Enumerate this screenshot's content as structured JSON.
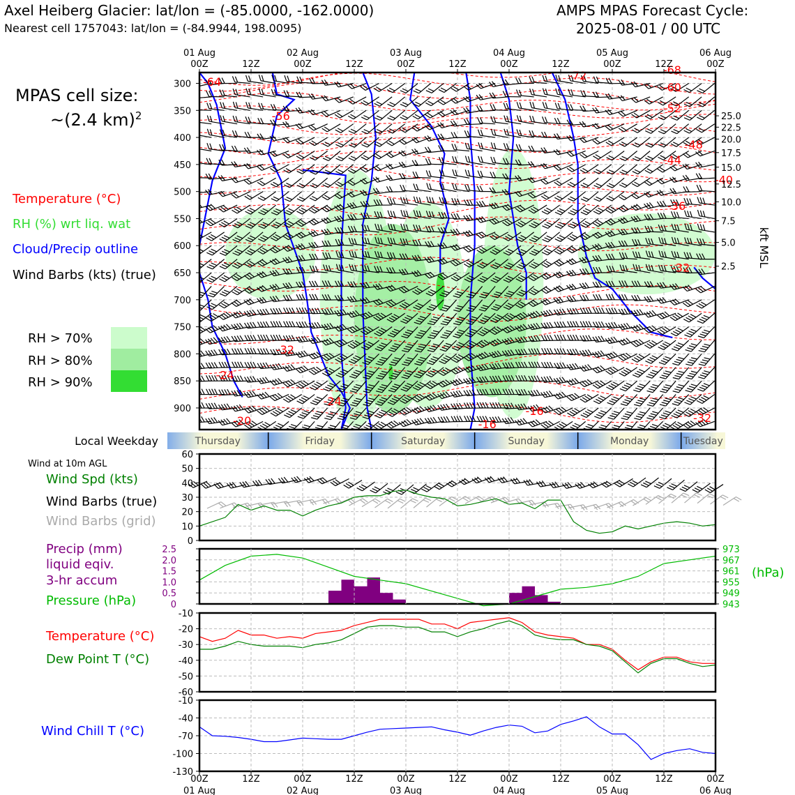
{
  "header": {
    "title_left": "Axel Heiberg Glacier: lat/lon = (-85.0000, -162.0000)",
    "subtitle_left": "Nearest cell 1757043: lat/lon = (-84.9944, 198.0095)",
    "title_right_1": "AMPS MPAS Forecast Cycle:",
    "title_right_2": "2025-08-01 / 00 UTC"
  },
  "time_axis": {
    "top_labels": [
      [
        "01 Aug",
        "00Z"
      ],
      [
        "",
        "12Z"
      ],
      [
        "02 Aug",
        "00Z"
      ],
      [
        "",
        "12Z"
      ],
      [
        "03 Aug",
        "00Z"
      ],
      [
        "",
        "12Z"
      ],
      [
        "04 Aug",
        "00Z"
      ],
      [
        "",
        "12Z"
      ],
      [
        "05 Aug",
        "00Z"
      ],
      [
        "",
        "12Z"
      ],
      [
        "06 Aug",
        "00Z"
      ]
    ],
    "bottom_labels": [
      [
        "00Z",
        "01 Aug"
      ],
      [
        "12Z",
        ""
      ],
      [
        "00Z",
        "02 Aug"
      ],
      [
        "12Z",
        ""
      ],
      [
        "00Z",
        "03 Aug"
      ],
      [
        "12Z",
        ""
      ],
      [
        "00Z",
        "04 Aug"
      ],
      [
        "12Z",
        ""
      ],
      [
        "00Z",
        "05 Aug"
      ],
      [
        "12Z",
        ""
      ],
      [
        "00Z",
        "06 Aug"
      ]
    ]
  },
  "cell_size": {
    "line1": "MPAS cell size:",
    "line2": "~(2.4 km)",
    "sup": "2"
  },
  "legend_profile": {
    "temp": "Temperature (°C)",
    "rh": "RH (%) wrt liq. wat",
    "cloud": "Cloud/Precip outline",
    "wind": "Wind Barbs (kts) (true)",
    "rh70": "RH > 70%",
    "rh80": "RH > 80%",
    "rh90": "RH > 90%"
  },
  "colors": {
    "temp": "#ff0000",
    "rh_label": "#33dd33",
    "rh70": "#ccfccc",
    "rh80": "#a0eda0",
    "rh90": "#33dd33",
    "cloud": "#0000ff",
    "speed": "#008000",
    "precip": "#800080",
    "pressure": "#00bb00",
    "dewpoint": "#008000",
    "windchill": "#0000ff",
    "barb_grid": "#aaaaaa"
  },
  "weekday": {
    "label": "Local Weekday",
    "days": [
      "Thursday",
      "Friday",
      "Saturday",
      "Sunday",
      "Monday",
      "Tuesday"
    ]
  },
  "wind_legend": {
    "sub": "Wind at 10m AGL",
    "speed": "Wind Spd (kts)",
    "true": "Wind Barbs (true)",
    "grid": "Wind Barbs (grid)"
  },
  "precip_legend": {
    "l1": "Precip (mm)",
    "l2": "liquid eqiv.",
    "l3": "3-hr accum",
    "pressure": "Pressure (hPa)",
    "right_unit": "(hPa)"
  },
  "temp_legend": {
    "temp": "Temperature (°C)",
    "dew": "Dew Point T (°C)"
  },
  "wc_legend": {
    "label": "Wind Chill T (°C)"
  },
  "kft_label": "kft MSL",
  "chart_data": [
    {
      "type": "heatmap",
      "name": "profile",
      "y_pressure_ticks": [
        "300",
        "350",
        "400",
        "450",
        "500",
        "550",
        "600",
        "650",
        "700",
        "750",
        "800",
        "850",
        "900"
      ],
      "y_pressure_values": [
        300,
        350,
        400,
        450,
        500,
        550,
        600,
        650,
        700,
        750,
        800,
        850,
        900
      ],
      "ylim_hPa": [
        940,
        280
      ],
      "kft_ticks": [
        "25.0",
        "22.5",
        "20.0",
        "17.5",
        "15.0",
        "12.5",
        "10.0",
        "7.5",
        "5.0",
        "2.5"
      ],
      "kft_tick_pressures": [
        360,
        381,
        403,
        428,
        455,
        486,
        519,
        554,
        594,
        638
      ],
      "temp_contour_labels": [
        {
          "t": 0,
          "p": 297,
          "label": "-64"
        },
        {
          "t": 16,
          "p": 360,
          "label": "-56"
        },
        {
          "t": 85,
          "p": 285,
          "label": "-72"
        },
        {
          "t": 107,
          "p": 275,
          "label": "-68"
        },
        {
          "t": 107,
          "p": 307,
          "label": "-60"
        },
        {
          "t": 107,
          "p": 346,
          "label": "-52"
        },
        {
          "t": 112,
          "p": 413,
          "label": "-48"
        },
        {
          "t": 107,
          "p": 441,
          "label": "-44"
        },
        {
          "t": 119,
          "p": 478,
          "label": "-40"
        },
        {
          "t": 108,
          "p": 526,
          "label": "-36"
        },
        {
          "t": 109,
          "p": 640,
          "label": "-32"
        },
        {
          "t": 17,
          "p": 792,
          "label": "-32"
        },
        {
          "t": 3,
          "p": 839,
          "label": "-24"
        },
        {
          "t": 75,
          "p": 905,
          "label": "-16"
        },
        {
          "t": 64,
          "p": 930,
          "label": "-16"
        },
        {
          "t": 7,
          "p": 923,
          "label": "-20"
        },
        {
          "t": 114,
          "p": 918,
          "label": "-32"
        },
        {
          "t": 28,
          "p": 887,
          "label": "-24"
        }
      ],
      "rh_patches": [
        {
          "level": 70,
          "t0": 6,
          "t1": 27,
          "p0": 530,
          "p1": 700
        },
        {
          "level": 70,
          "t0": 28,
          "t1": 45,
          "p0": 460,
          "p1": 935
        },
        {
          "level": 70,
          "t0": 44,
          "t1": 62,
          "p0": 520,
          "p1": 900
        },
        {
          "level": 70,
          "t0": 66,
          "t1": 80,
          "p0": 420,
          "p1": 920
        },
        {
          "level": 70,
          "t0": 88,
          "t1": 120,
          "p0": 540,
          "p1": 690
        },
        {
          "level": 80,
          "t0": 36,
          "t1": 54,
          "p0": 560,
          "p1": 910
        },
        {
          "level": 80,
          "t0": 60,
          "t1": 76,
          "p0": 600,
          "p1": 880
        },
        {
          "level": 90,
          "t0": 55,
          "t1": 57,
          "p0": 650,
          "p1": 720
        },
        {
          "level": 90,
          "t0": 44,
          "t1": 45,
          "p0": 820,
          "p1": 850
        }
      ],
      "cloud_outlines": [
        [
          [
            0,
            280
          ],
          [
            2,
            300
          ],
          [
            4,
            340
          ],
          [
            6,
            420
          ],
          [
            3,
            480
          ],
          [
            1,
            560
          ],
          [
            0,
            600
          ]
        ],
        [
          [
            17,
            280
          ],
          [
            18,
            320
          ],
          [
            22,
            330
          ],
          [
            18,
            360
          ],
          [
            16,
            430
          ],
          [
            19,
            480
          ],
          [
            20,
            560
          ],
          [
            24,
            650
          ],
          [
            25,
            700
          ],
          [
            26,
            760
          ],
          [
            28,
            800
          ],
          [
            30,
            840
          ],
          [
            33,
            870
          ],
          [
            35,
            900
          ],
          [
            33,
            940
          ]
        ],
        [
          [
            24,
            460
          ],
          [
            34,
            470
          ],
          [
            33,
            600
          ],
          [
            33,
            800
          ],
          [
            34,
            900
          ],
          [
            33,
            940
          ]
        ],
        [
          [
            38,
            280
          ],
          [
            40,
            320
          ],
          [
            41,
            400
          ],
          [
            40,
            480
          ],
          [
            38,
            560
          ],
          [
            38,
            720
          ],
          [
            39,
            900
          ],
          [
            40,
            940
          ]
        ],
        [
          [
            50,
            280
          ],
          [
            49,
            330
          ],
          [
            54,
            380
          ],
          [
            57,
            430
          ],
          [
            56,
            480
          ],
          [
            58,
            550
          ],
          [
            56,
            600
          ],
          [
            56,
            650
          ]
        ],
        [
          [
            62,
            280
          ],
          [
            63,
            330
          ],
          [
            63,
            400
          ],
          [
            64,
            500
          ],
          [
            64,
            600
          ],
          [
            63,
            700
          ],
          [
            63,
            800
          ],
          [
            64,
            900
          ],
          [
            63,
            940
          ]
        ],
        [
          [
            70,
            280
          ],
          [
            72,
            330
          ],
          [
            73,
            400
          ],
          [
            72,
            500
          ],
          [
            74,
            600
          ],
          [
            76,
            650
          ],
          [
            76,
            700
          ]
        ],
        [
          [
            82,
            280
          ],
          [
            85,
            330
          ],
          [
            87,
            400
          ],
          [
            88,
            450
          ],
          [
            88,
            550
          ],
          [
            90,
            620
          ],
          [
            92,
            660
          ],
          [
            96,
            680
          ],
          [
            100,
            720
          ],
          [
            105,
            760
          ],
          [
            110,
            770
          ]
        ],
        [
          [
            115,
            640
          ],
          [
            117,
            660
          ],
          [
            120,
            680
          ]
        ],
        [
          [
            0,
            650
          ],
          [
            2,
            700
          ],
          [
            3,
            750
          ],
          [
            6,
            800
          ],
          [
            8,
            850
          ],
          [
            10,
            880
          ]
        ]
      ]
    },
    {
      "type": "line",
      "name": "wind_speed",
      "ylabel": "",
      "ylim": [
        0,
        60
      ],
      "yticks": [
        "0",
        "10",
        "20",
        "30",
        "40",
        "50",
        "60"
      ],
      "x_hours": [
        0,
        6,
        9,
        12,
        15,
        18,
        21,
        24,
        27,
        30,
        33,
        36,
        39,
        42,
        45,
        48,
        51,
        54,
        57,
        60,
        63,
        66,
        69,
        72,
        75,
        78,
        81,
        84,
        87,
        90,
        93,
        96,
        99,
        102,
        105,
        108,
        111,
        114,
        117,
        120
      ],
      "series": [
        {
          "name": "",
          "values": [
            10,
            16,
            25,
            21,
            24,
            21,
            21,
            17,
            21,
            24,
            26,
            30,
            31,
            31,
            34,
            35,
            32,
            30,
            29,
            24,
            25,
            27,
            29,
            25,
            26,
            22,
            28,
            28,
            13,
            7,
            5,
            6,
            10,
            8,
            10,
            12,
            13,
            12,
            10,
            11
          ]
        }
      ]
    },
    {
      "type": "bar",
      "name": "precip",
      "ylim": [
        0,
        2.5
      ],
      "yticks_left": [
        "0",
        "0.5",
        "1.0",
        "1.5",
        "2.0",
        "2.5"
      ],
      "yticks_right": [
        "943",
        "949",
        "955",
        "961",
        "967",
        "973"
      ],
      "bars_hours": [
        [
          30,
          33,
          0.6
        ],
        [
          33,
          36,
          1.1
        ],
        [
          36,
          39,
          0.8
        ],
        [
          39,
          42,
          1.2
        ],
        [
          42,
          45,
          0.5
        ],
        [
          45,
          48,
          0.2
        ],
        [
          72,
          75,
          0.5
        ],
        [
          75,
          78,
          0.8
        ],
        [
          78,
          81,
          0.4
        ],
        [
          81,
          84,
          0.1
        ]
      ],
      "series": [
        {
          "name": "",
          "values_hours": [
            [
              0,
              956
            ],
            [
              6,
              964
            ],
            [
              12,
              969
            ],
            [
              18,
              970
            ],
            [
              24,
              968
            ],
            [
              30,
              963
            ],
            [
              36,
              958
            ],
            [
              42,
              956
            ],
            [
              48,
              954
            ],
            [
              54,
              950
            ],
            [
              60,
              946
            ],
            [
              66,
              942
            ],
            [
              72,
              943
            ],
            [
              78,
              947
            ],
            [
              84,
              951
            ],
            [
              90,
              952
            ],
            [
              96,
              954
            ],
            [
              102,
              958
            ],
            [
              108,
              965
            ],
            [
              114,
              967
            ],
            [
              120,
              969
            ]
          ]
        }
      ],
      "pressure_range": [
        943,
        973
      ]
    },
    {
      "type": "line",
      "name": "temperature_dewpoint",
      "ylim": [
        -60,
        -10
      ],
      "yticks": [
        "-10",
        "-20",
        "-30",
        "-40",
        "-50",
        "-60"
      ],
      "x_hours": [
        0,
        3,
        6,
        9,
        12,
        15,
        18,
        21,
        24,
        27,
        30,
        33,
        36,
        39,
        42,
        45,
        48,
        51,
        54,
        57,
        60,
        63,
        66,
        69,
        72,
        75,
        78,
        81,
        84,
        87,
        90,
        93,
        96,
        99,
        102,
        105,
        108,
        111,
        114,
        117,
        120
      ],
      "series": [
        {
          "name": "",
          "values": [
            -25,
            -28,
            -26,
            -21,
            -24,
            -24,
            -26,
            -25,
            -26,
            -23,
            -22,
            -21,
            -18,
            -16,
            -14,
            -14,
            -14,
            -14,
            -17,
            -17,
            -20,
            -16,
            -15,
            -14,
            -13,
            -16,
            -22,
            -24,
            -25,
            -26,
            -30,
            -30,
            -33,
            -40,
            -46,
            -41,
            -38,
            -38,
            -41,
            -42,
            -42
          ]
        },
        {
          "name": "",
          "values": [
            -33,
            -33,
            -31,
            -28,
            -30,
            -31,
            -31,
            -31,
            -32,
            -30,
            -29,
            -27,
            -23,
            -19,
            -18,
            -18,
            -19,
            -19,
            -22,
            -22,
            -25,
            -22,
            -20,
            -17,
            -15,
            -18,
            -24,
            -26,
            -27,
            -27,
            -30,
            -31,
            -34,
            -41,
            -48,
            -42,
            -39,
            -39,
            -42,
            -44,
            -43
          ]
        }
      ]
    },
    {
      "type": "line",
      "name": "wind_chill",
      "ylim": [
        -130,
        -10
      ],
      "yticks": [
        "-10",
        "-40",
        "-70",
        "-100",
        "-130"
      ],
      "x_hours": [
        0,
        3,
        6,
        9,
        12,
        15,
        18,
        21,
        24,
        27,
        30,
        33,
        36,
        39,
        42,
        45,
        48,
        51,
        54,
        57,
        60,
        63,
        66,
        69,
        72,
        75,
        78,
        81,
        84,
        87,
        90,
        93,
        96,
        99,
        102,
        105,
        108,
        111,
        114,
        117,
        120
      ],
      "series": [
        {
          "name": "",
          "values": [
            -55,
            -70,
            -71,
            -73,
            -76,
            -80,
            -80,
            -77,
            -74,
            -75,
            -76,
            -76,
            -70,
            -64,
            -59,
            -58,
            -57,
            -56,
            -55,
            -60,
            -64,
            -69,
            -62,
            -56,
            -52,
            -54,
            -65,
            -62,
            -51,
            -45,
            -38,
            -55,
            -67,
            -67,
            -85,
            -110,
            -100,
            -95,
            -92,
            -98,
            -100
          ]
        }
      ]
    }
  ]
}
